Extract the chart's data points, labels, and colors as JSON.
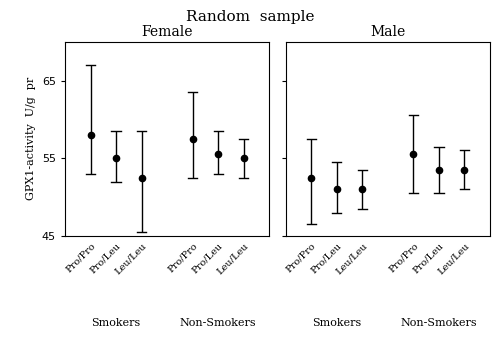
{
  "title": "Random  sample",
  "ylabel": "GPX1-activity  U/g  pr",
  "panels": [
    {
      "title": "Female",
      "groups": [
        "Smokers",
        "Non-Smokers"
      ],
      "x_labels": [
        "Pro/Pro",
        "Pro/Leu",
        "Leu/Leu",
        "Pro/Pro",
        "Pro/Leu",
        "Leu/Leu"
      ],
      "means": [
        58.0,
        55.0,
        52.5,
        57.5,
        55.5,
        55.0
      ],
      "ci_lo": [
        53.0,
        52.0,
        45.5,
        52.5,
        53.0,
        52.5
      ],
      "ci_hi": [
        67.0,
        58.5,
        58.5,
        63.5,
        58.5,
        57.5
      ]
    },
    {
      "title": "Male",
      "groups": [
        "Smokers",
        "Non-Smokers"
      ],
      "x_labels": [
        "Pro/Pro",
        "Pro/Leu",
        "Leu/Leu",
        "Pro/Pro",
        "Pro/Leu",
        "Leu/Leu"
      ],
      "means": [
        52.5,
        51.0,
        51.0,
        55.5,
        53.5,
        53.5
      ],
      "ci_lo": [
        46.5,
        48.0,
        48.5,
        50.5,
        50.5,
        51.0
      ],
      "ci_hi": [
        57.5,
        54.5,
        53.5,
        60.5,
        56.5,
        56.0
      ]
    }
  ],
  "ylim": [
    45,
    70
  ],
  "yticks": [
    45,
    55,
    65
  ],
  "group_labels": [
    "Smokers",
    "Non-Smokers"
  ],
  "bg_color": "#ffffff",
  "point_color": "#000000",
  "line_color": "#000000",
  "font_family": "serif"
}
